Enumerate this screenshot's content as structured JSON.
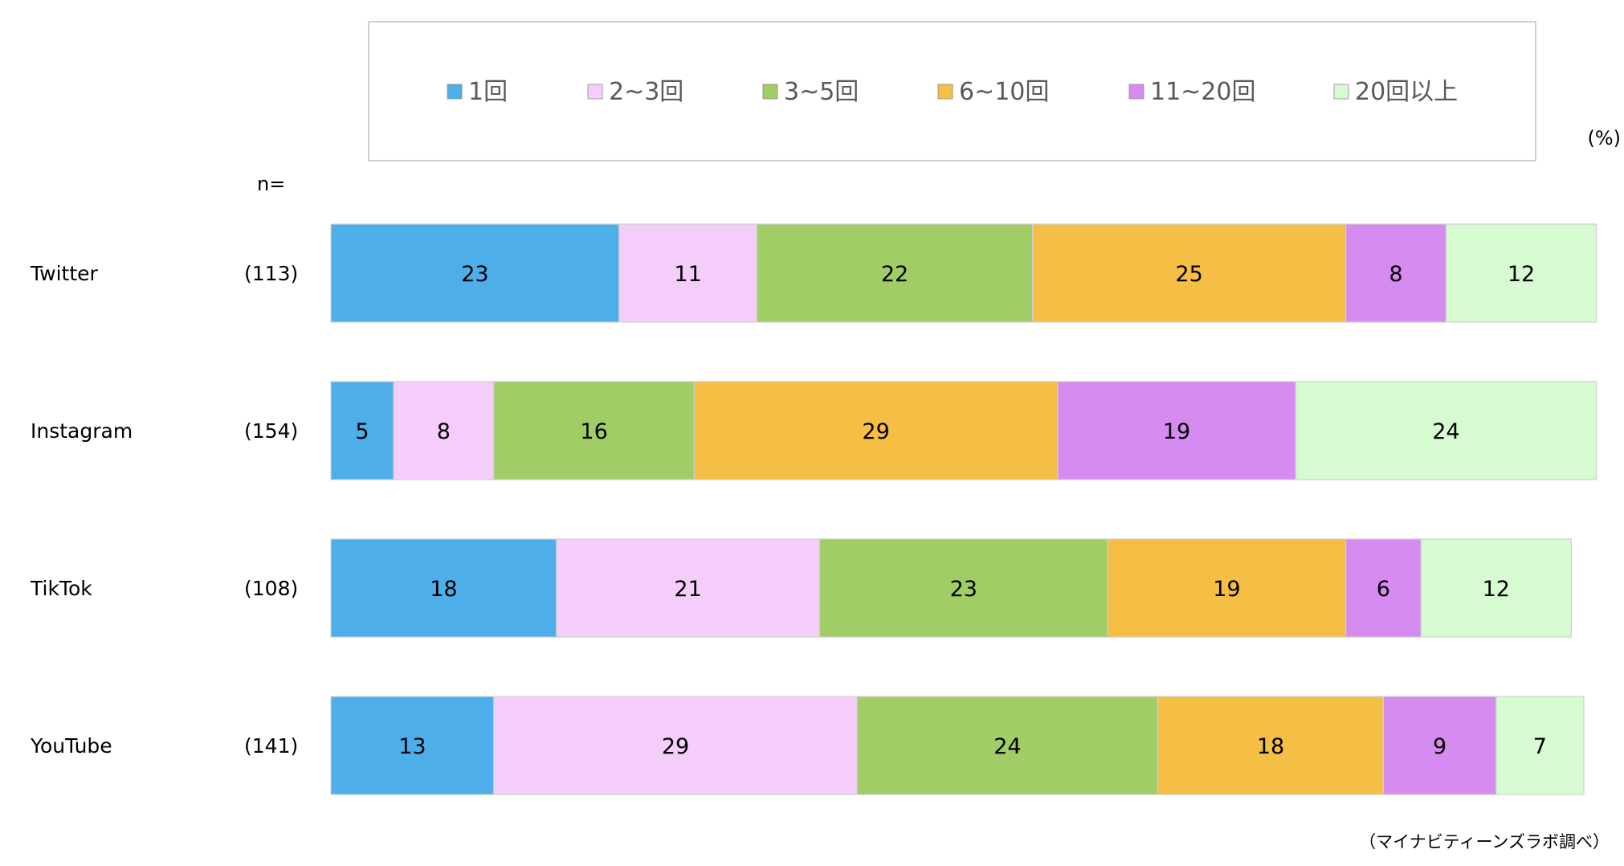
{
  "chart_data": {
    "type": "bar",
    "orientation": "horizontal",
    "stacked": true,
    "unit_label": "(%)",
    "n_header": "n=",
    "source": "（マイナビティーンズラボ調べ）",
    "categories": [
      "Twitter",
      "Instagram",
      "TikTok",
      "YouTube"
    ],
    "n_labels": [
      "(113)",
      "(154)",
      "(108)",
      "(141)"
    ],
    "xlim": [
      0,
      100
    ],
    "legend_position": "top",
    "series": [
      {
        "name": "1回",
        "color": "#4daee9",
        "values": [
          23,
          5,
          18,
          13
        ]
      },
      {
        "name": "2~3回",
        "color": "#f4cdfb",
        "values": [
          11,
          8,
          21,
          29
        ]
      },
      {
        "name": "3~5回",
        "color": "#a0cd66",
        "values": [
          22,
          16,
          23,
          24
        ]
      },
      {
        "name": "6~10回",
        "color": "#f5be44",
        "values": [
          25,
          29,
          19,
          18
        ]
      },
      {
        "name": "11~20回",
        "color": "#d58bf0",
        "values": [
          8,
          19,
          6,
          9
        ]
      },
      {
        "name": "20回以上",
        "color": "#d6fbd0",
        "values": [
          12,
          24,
          12,
          7
        ]
      }
    ]
  }
}
